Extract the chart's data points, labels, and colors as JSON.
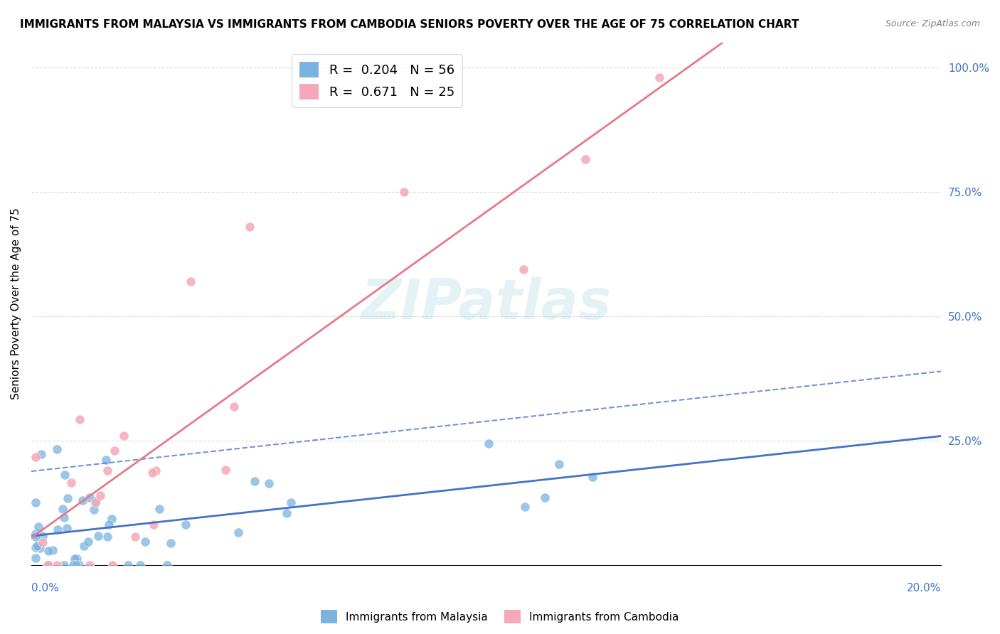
{
  "title": "IMMIGRANTS FROM MALAYSIA VS IMMIGRANTS FROM CAMBODIA SENIORS POVERTY OVER THE AGE OF 75 CORRELATION CHART",
  "source": "Source: ZipAtlas.com",
  "ylabel": "Seniors Poverty Over the Age of 75",
  "x_range": [
    0.0,
    0.2
  ],
  "y_range": [
    0.0,
    1.05
  ],
  "malaysia_R": 0.204,
  "malaysia_N": 56,
  "cambodia_R": 0.671,
  "cambodia_N": 25,
  "malaysia_color": "#7ab3e0",
  "cambodia_color": "#f4a8b8",
  "malaysia_line_color": "#4472c4",
  "cambodia_line_color": "#e8788a",
  "watermark_text": "ZIPatlas",
  "legend_label_malaysia": "Immigrants from Malaysia",
  "legend_label_cambodia": "Immigrants from Cambodia"
}
